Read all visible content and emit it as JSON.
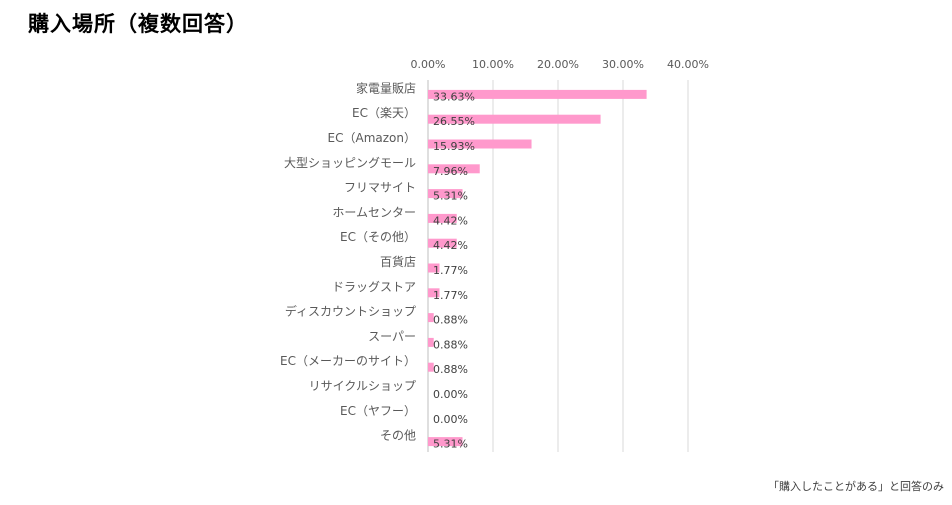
{
  "title": "購入場所（複数回答）",
  "note": "「購入したことがある」と回答のみ",
  "colors": {
    "bar": "#ff99cc",
    "grid": "#d9d9d9",
    "axis": "#bfbfbf"
  },
  "chart_data": {
    "type": "bar",
    "orientation": "horizontal",
    "categories": [
      "家電量販店",
      "EC（楽天）",
      "EC（Amazon）",
      "大型ショッピングモール",
      "フリマサイト",
      "ホームセンター",
      "EC（その他）",
      "百貨店",
      "ドラッグストア",
      "ディスカウントショップ",
      "スーパー",
      "EC（メーカーのサイト）",
      "リサイクルショップ",
      "EC（ヤフー）",
      "その他"
    ],
    "values": [
      33.63,
      26.55,
      15.93,
      7.96,
      5.31,
      4.42,
      4.42,
      1.77,
      1.77,
      0.88,
      0.88,
      0.88,
      0.0,
      0.0,
      5.31
    ],
    "data_labels": [
      "33.63%",
      "26.55%",
      "15.93%",
      "7.96%",
      "5.31%",
      "4.42%",
      "4.42%",
      "1.77%",
      "1.77%",
      "0.88%",
      "0.88%",
      "0.88%",
      "0.00%",
      "0.00%",
      "5.31%"
    ],
    "x_ticks": [
      "0.00%",
      "10.00%",
      "20.00%",
      "30.00%",
      "40.00%"
    ],
    "xlim": [
      0,
      40
    ],
    "grid": true,
    "legend": "none"
  }
}
